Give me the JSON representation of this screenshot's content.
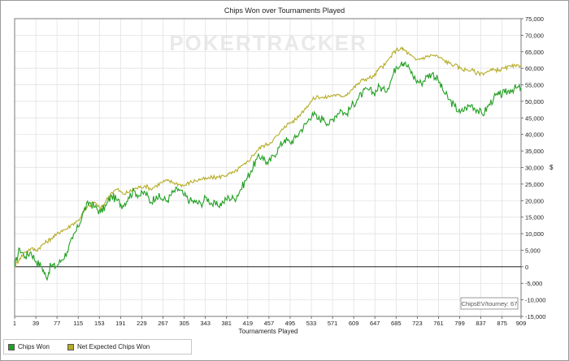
{
  "chart_data": {
    "type": "line",
    "title": "Chips Won over Tournaments Played",
    "xlabel": "Tournaments Played",
    "ylabel": "$",
    "xlim": [
      1,
      909
    ],
    "ylim": [
      -15000,
      75000
    ],
    "x_ticks": [
      1,
      39,
      77,
      115,
      153,
      191,
      229,
      267,
      305,
      343,
      381,
      419,
      457,
      495,
      533,
      571,
      609,
      647,
      685,
      723,
      761,
      799,
      837,
      875,
      909
    ],
    "y_ticks": [
      -15000,
      -10000,
      -5000,
      0,
      5000,
      10000,
      15000,
      20000,
      25000,
      30000,
      35000,
      40000,
      45000,
      50000,
      55000,
      60000,
      65000,
      70000,
      75000
    ],
    "y_tick_labels": [
      "-15,000",
      "-10,000",
      "-5,000",
      "0",
      "5,000",
      "10,000",
      "15,000",
      "20,000",
      "25,000",
      "30,000",
      "35,000",
      "40,000",
      "45,000",
      "50,000",
      "55,000",
      "60,000",
      "65,000",
      "70,000",
      "75,000"
    ],
    "grid": true,
    "legend": "bottom-left",
    "watermark": "POKERTRACKER",
    "annotation": "ChipsEV/tourney: 67",
    "series": [
      {
        "name": "Chips Won",
        "color": "#22a022",
        "x": [
          1,
          10,
          20,
          30,
          40,
          50,
          58,
          66,
          75,
          85,
          95,
          105,
          115,
          125,
          135,
          145,
          155,
          165,
          175,
          185,
          195,
          205,
          215,
          225,
          235,
          245,
          255,
          265,
          275,
          285,
          295,
          305,
          315,
          325,
          335,
          345,
          355,
          365,
          375,
          385,
          395,
          405,
          415,
          425,
          435,
          445,
          455,
          465,
          475,
          485,
          495,
          505,
          515,
          525,
          535,
          545,
          555,
          565,
          575,
          585,
          595,
          605,
          615,
          625,
          635,
          645,
          655,
          665,
          675,
          685,
          695,
          700,
          710,
          720,
          730,
          740,
          750,
          760,
          770,
          780,
          790,
          800,
          810,
          820,
          830,
          840,
          850,
          860,
          870,
          880,
          890,
          900,
          909
        ],
        "y": [
          0,
          5500,
          3000,
          4500,
          1500,
          0,
          -3500,
          500,
          0,
          2000,
          4500,
          8500,
          12000,
          17000,
          19500,
          18000,
          16500,
          18500,
          21500,
          20000,
          18500,
          21000,
          23000,
          21500,
          22500,
          19500,
          21500,
          20500,
          20000,
          22500,
          23500,
          21500,
          20000,
          19500,
          19000,
          21000,
          19000,
          18500,
          19500,
          21000,
          20500,
          23000,
          26000,
          29000,
          32500,
          33500,
          31000,
          33500,
          36000,
          38500,
          37500,
          39000,
          41500,
          43500,
          46500,
          44500,
          45000,
          43000,
          45500,
          47500,
          46000,
          48500,
          50500,
          52500,
          53500,
          52500,
          54500,
          53000,
          56000,
          60500,
          62000,
          61500,
          59500,
          56500,
          55500,
          57500,
          58500,
          56500,
          53000,
          50500,
          48500,
          46500,
          48000,
          49000,
          47500,
          46000,
          48500,
          51000,
          52000,
          52500,
          53500,
          54000,
          54000
        ]
      },
      {
        "name": "Net Expected Chips Won",
        "color": "#b5ac28",
        "x": [
          1,
          10,
          20,
          30,
          40,
          50,
          58,
          66,
          75,
          85,
          95,
          105,
          115,
          125,
          135,
          145,
          155,
          165,
          175,
          185,
          195,
          205,
          215,
          225,
          235,
          245,
          255,
          265,
          275,
          285,
          295,
          305,
          315,
          325,
          335,
          345,
          355,
          365,
          375,
          385,
          395,
          405,
          415,
          425,
          435,
          445,
          455,
          465,
          475,
          485,
          495,
          505,
          515,
          525,
          535,
          545,
          555,
          565,
          575,
          585,
          595,
          605,
          615,
          625,
          635,
          645,
          655,
          665,
          675,
          685,
          695,
          700,
          710,
          720,
          730,
          740,
          750,
          760,
          770,
          780,
          790,
          800,
          810,
          820,
          830,
          840,
          850,
          860,
          870,
          880,
          890,
          900,
          909
        ],
        "y": [
          0,
          2500,
          4500,
          5500,
          5000,
          6500,
          7500,
          8500,
          9500,
          11000,
          11500,
          13000,
          14000,
          16500,
          18500,
          19500,
          17500,
          20000,
          22500,
          23500,
          22000,
          22500,
          23500,
          24000,
          24500,
          23500,
          24500,
          25500,
          26000,
          25500,
          25000,
          24500,
          25500,
          26000,
          26500,
          26500,
          27000,
          27000,
          27500,
          28000,
          28500,
          30000,
          31000,
          33000,
          35000,
          36500,
          37000,
          38500,
          40000,
          42500,
          43500,
          44500,
          46500,
          48500,
          50500,
          51500,
          51000,
          51500,
          52000,
          51500,
          52000,
          53500,
          55000,
          56500,
          57000,
          57500,
          60000,
          61000,
          63500,
          65500,
          66000,
          65500,
          64000,
          62500,
          63000,
          63500,
          64000,
          63500,
          62500,
          61500,
          61000,
          60000,
          59500,
          59500,
          58500,
          58500,
          59000,
          59500,
          59500,
          60000,
          60500,
          60500,
          61000
        ]
      }
    ]
  }
}
